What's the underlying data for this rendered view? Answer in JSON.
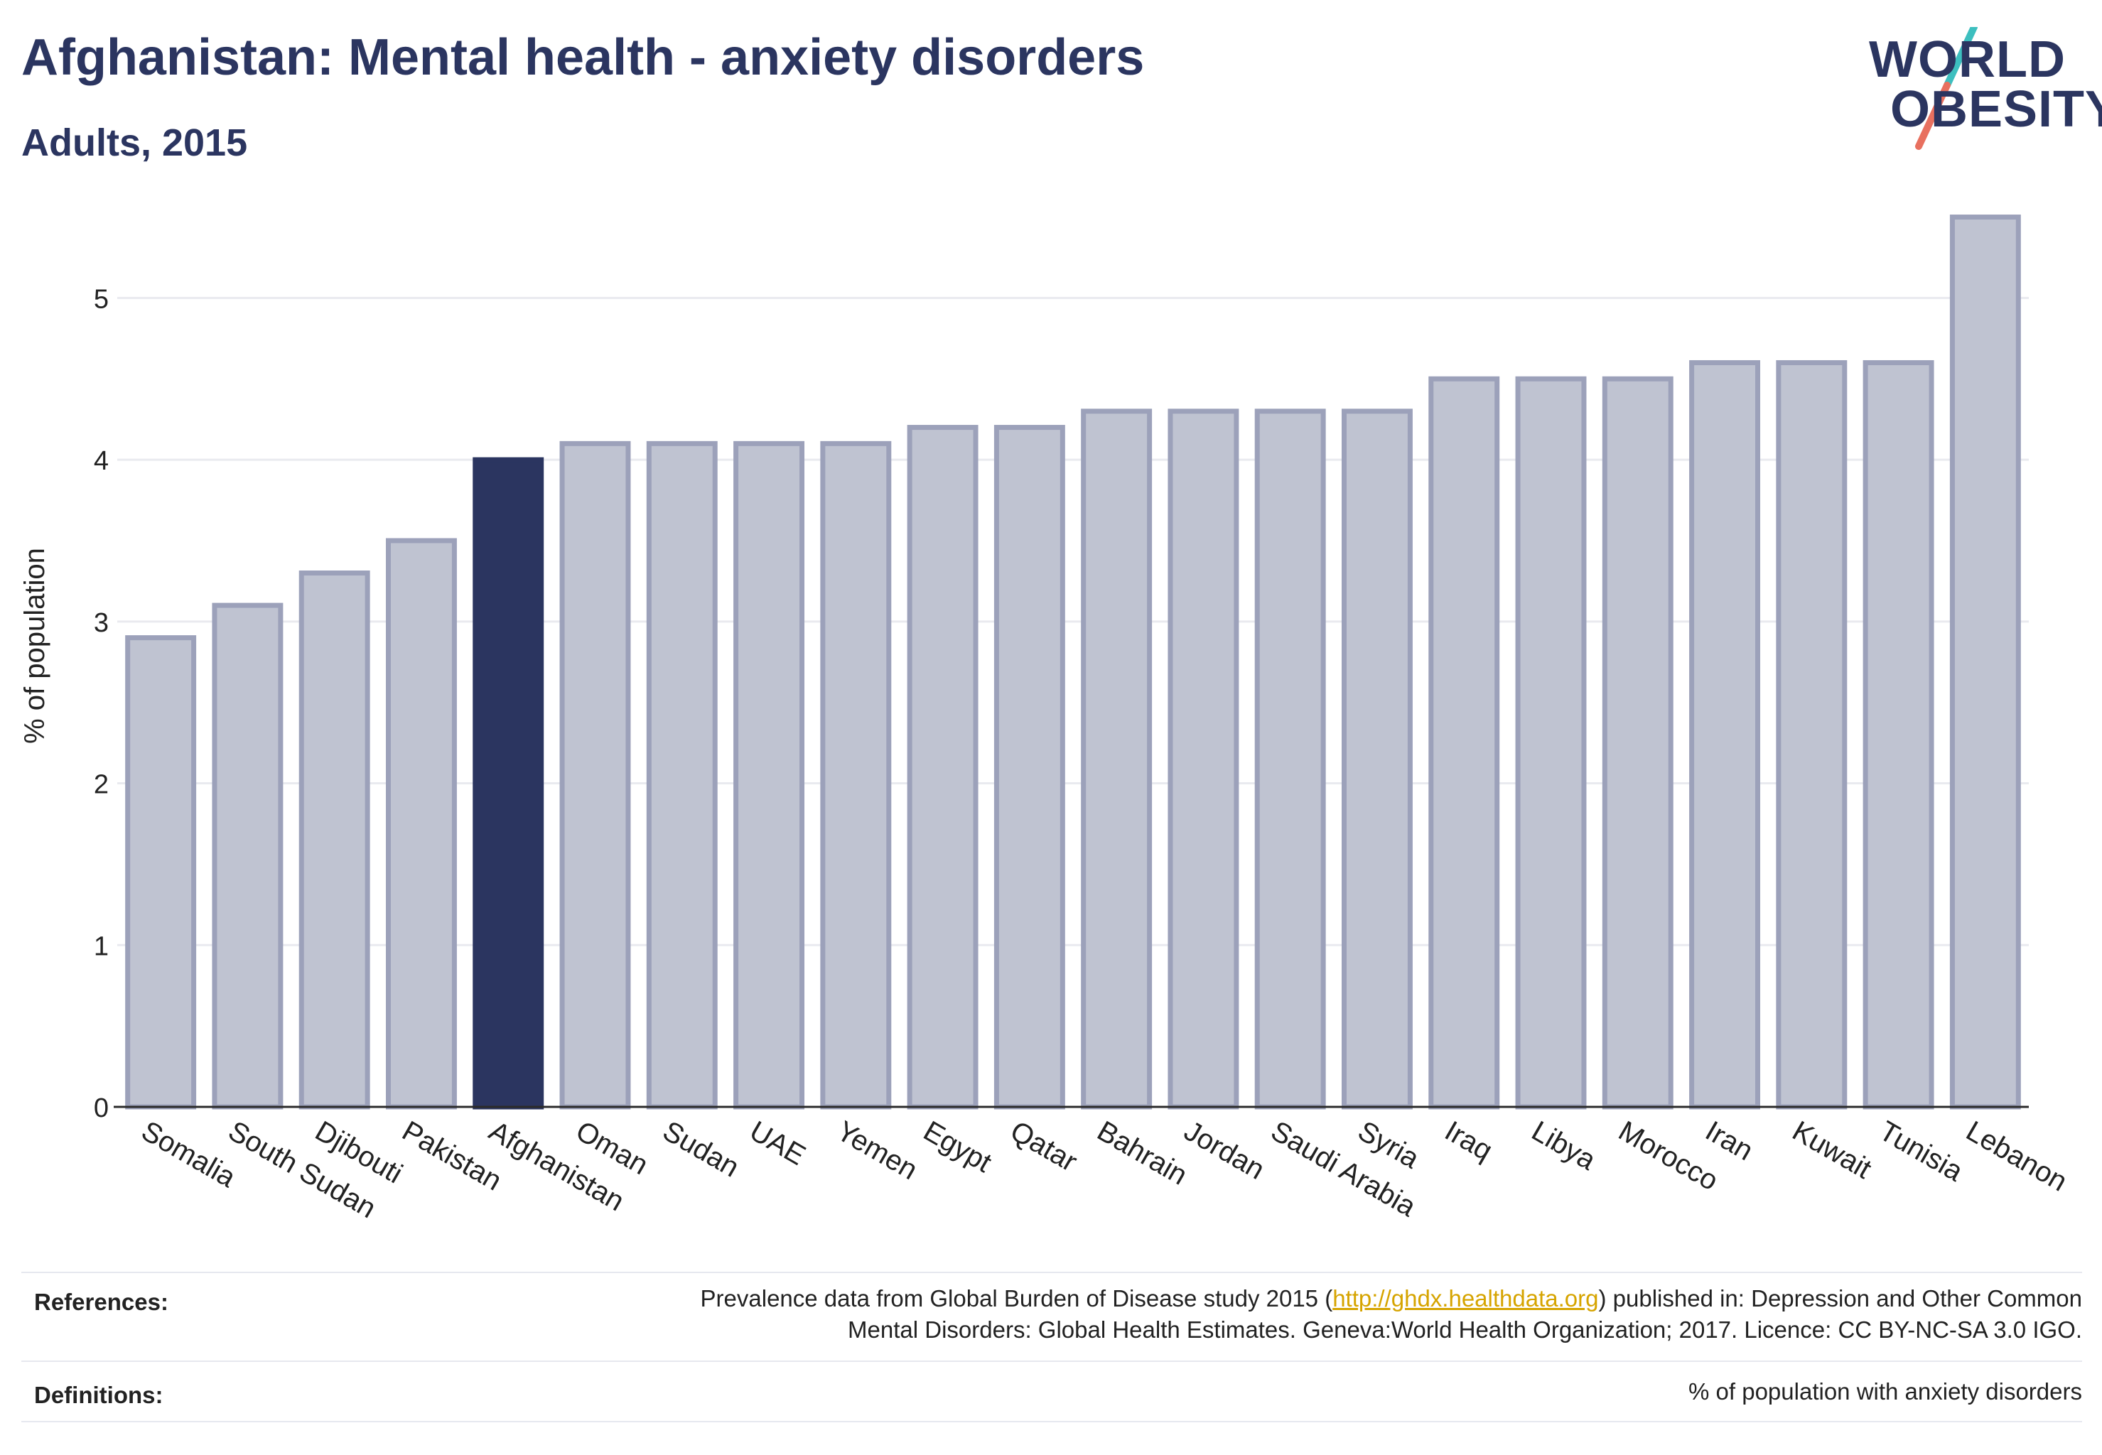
{
  "header": {
    "title": "Afghanistan: Mental health - anxiety disorders",
    "subtitle": "Adults, 2015"
  },
  "logo": {
    "line1": "WORLD",
    "line2": "OBESITY"
  },
  "chart_data": {
    "type": "bar",
    "categories": [
      "Somalia",
      "South Sudan",
      "Djibouti",
      "Pakistan",
      "Afghanistan",
      "Oman",
      "Sudan",
      "UAE",
      "Yemen",
      "Egypt",
      "Qatar",
      "Bahrain",
      "Jordan",
      "Saudi Arabia",
      "Syria",
      "Iraq",
      "Libya",
      "Morocco",
      "Iran",
      "Kuwait",
      "Tunisia",
      "Lebanon"
    ],
    "values": [
      2.9,
      3.1,
      3.3,
      3.5,
      4.0,
      4.1,
      4.1,
      4.1,
      4.1,
      4.2,
      4.2,
      4.3,
      4.3,
      4.3,
      4.3,
      4.5,
      4.5,
      4.5,
      4.6,
      4.6,
      4.6,
      5.5
    ],
    "highlight": "Afghanistan",
    "ylabel": "% of population",
    "yticks": [
      0,
      1,
      2,
      3,
      4,
      5
    ],
    "ylim": [
      0,
      5.7
    ],
    "grid": true,
    "colors": {
      "bar": "#bfc3d1",
      "bar_edge": "#9ca1ba",
      "highlight": "#2b3560",
      "grid": "#e9eaef",
      "axis": "#2b2b2b"
    }
  },
  "references": {
    "label": "References:",
    "line1_before": "Prevalence data from Global Burden of Disease study 2015 (",
    "link": "http://ghdx.healthdata.org",
    "line1_after": ") published in: Depression and Other Common",
    "line2": "Mental Disorders: Global Health Estimates. Geneva:World Health Organization; 2017. Licence: CC BY-NC-SA 3.0 IGO."
  },
  "definitions": {
    "label": "Definitions:",
    "text": "% of population with anxiety disorders"
  }
}
